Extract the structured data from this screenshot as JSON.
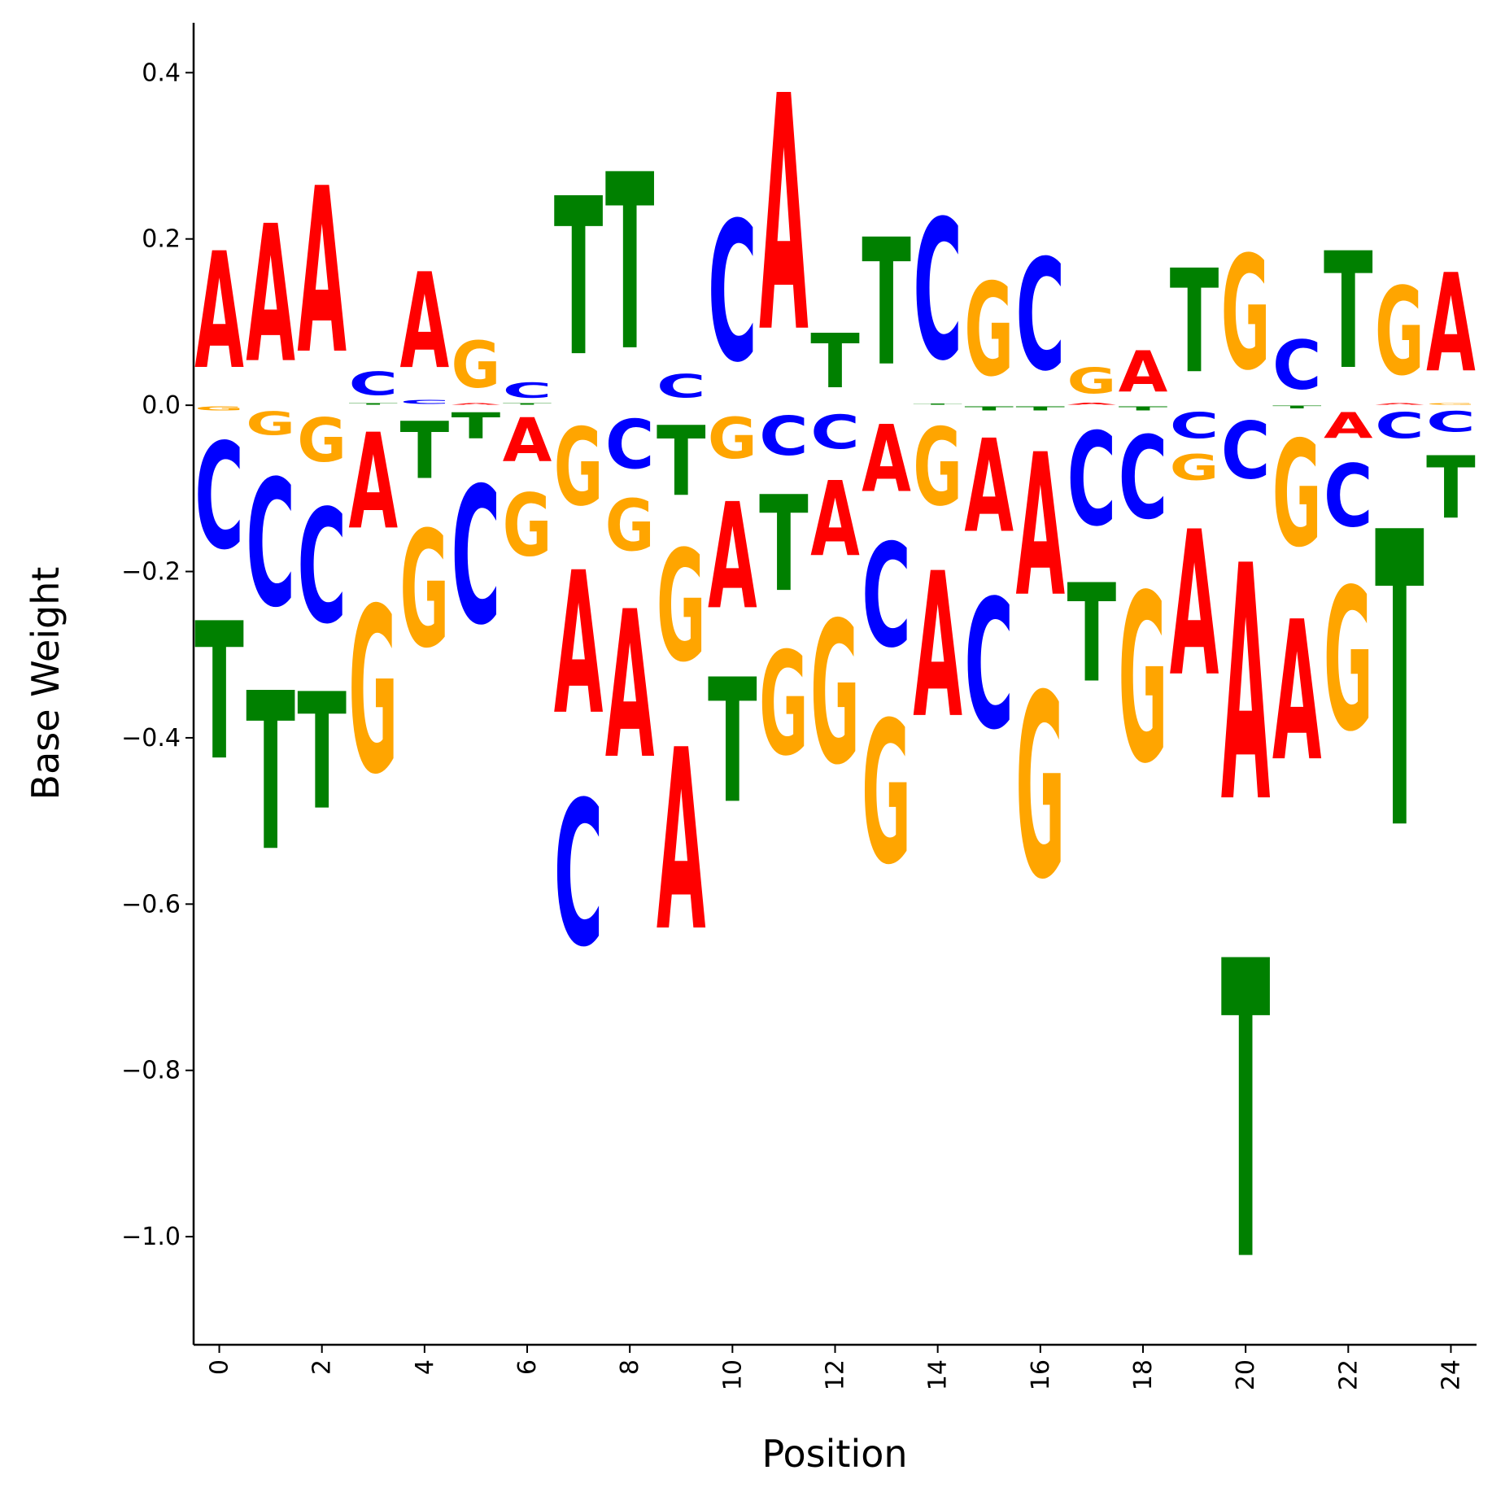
{
  "chart_data": {
    "type": "sequence-logo",
    "title": "",
    "xlabel": "Position",
    "ylabel": "Base Weight",
    "xlim": [
      -0.5,
      24.5
    ],
    "ylim": [
      -1.13,
      0.46
    ],
    "xticks": [
      "0",
      "2",
      "4",
      "6",
      "8",
      "10",
      "12",
      "14",
      "16",
      "18",
      "20",
      "22",
      "24"
    ],
    "yticks": [
      "0.4",
      "0.2",
      "0.0",
      "−0.2",
      "−0.4",
      "−0.6",
      "−0.8",
      "−1.0"
    ],
    "ytick_values": [
      0.4,
      0.2,
      0.0,
      -0.2,
      -0.4,
      -0.6,
      -0.8,
      -1.0
    ],
    "grid": false,
    "colors": {
      "A": "#ff0000",
      "C": "#0000ff",
      "G": "#ffa500",
      "T": "#008000"
    },
    "positions": [
      {
        "pos": 0,
        "A": 0.225,
        "C": -0.205,
        "G": -0.008,
        "T": -0.265
      },
      {
        "pos": 1,
        "A": 0.265,
        "C": -0.245,
        "G": -0.045,
        "T": -0.305
      },
      {
        "pos": 2,
        "A": 0.32,
        "C": -0.22,
        "G": -0.085,
        "T": -0.225
      },
      {
        "pos": 3,
        "A": -0.185,
        "C": 0.045,
        "G": -0.32,
        "T": 0.003
      },
      {
        "pos": 4,
        "A": 0.185,
        "C": 0.008,
        "G": -0.225,
        "T": -0.11
      },
      {
        "pos": 5,
        "A": 0.003,
        "C": -0.265,
        "G": 0.09,
        "T": -0.05
      },
      {
        "pos": 6,
        "A": -0.085,
        "C": 0.03,
        "G": -0.12,
        "T": 0.003
      },
      {
        "pos": 7,
        "A": -0.275,
        "C": -0.28,
        "G": -0.15,
        "T": 0.305
      },
      {
        "pos": 8,
        "A": -0.285,
        "C": -0.095,
        "G": -0.1,
        "T": 0.34
      },
      {
        "pos": 9,
        "A": -0.35,
        "C": 0.045,
        "G": -0.215,
        "T": -0.135
      },
      {
        "pos": 10,
        "A": -0.205,
        "C": 0.27,
        "G": -0.08,
        "T": -0.24
      },
      {
        "pos": 11,
        "A": 0.455,
        "C": -0.075,
        "G": -0.2,
        "T": -0.185
      },
      {
        "pos": 12,
        "A": -0.145,
        "C": -0.065,
        "G": -0.275,
        "T": 0.105
      },
      {
        "pos": 13,
        "A": -0.13,
        "C": -0.2,
        "G": -0.275,
        "T": 0.245
      },
      {
        "pos": 14,
        "A": -0.28,
        "C": 0.27,
        "G": -0.15,
        "T": 0.002
      },
      {
        "pos": 15,
        "A": -0.18,
        "C": -0.25,
        "G": 0.18,
        "T": -0.008
      },
      {
        "pos": 16,
        "A": -0.275,
        "C": 0.215,
        "G": -0.355,
        "T": -0.008
      },
      {
        "pos": 17,
        "A": 0.004,
        "C": -0.18,
        "G": 0.05,
        "T": -0.19
      },
      {
        "pos": 18,
        "A": 0.08,
        "C": -0.16,
        "G": -0.325,
        "T": -0.008
      },
      {
        "pos": 19,
        "A": -0.28,
        "C": -0.05,
        "G": -0.05,
        "T": 0.2
      },
      {
        "pos": 20,
        "A": -0.455,
        "C": -0.11,
        "G": 0.22,
        "T": -0.575
      },
      {
        "pos": 21,
        "A": -0.27,
        "C": 0.095,
        "G": -0.205,
        "T": -0.005
      },
      {
        "pos": 22,
        "A": -0.05,
        "C": -0.12,
        "G": -0.275,
        "T": 0.225
      },
      {
        "pos": 23,
        "A": 0.003,
        "C": -0.05,
        "G": 0.17,
        "T": -0.57
      },
      {
        "pos": 24,
        "A": 0.19,
        "C": -0.04,
        "G": 0.003,
        "T": -0.12
      }
    ]
  }
}
